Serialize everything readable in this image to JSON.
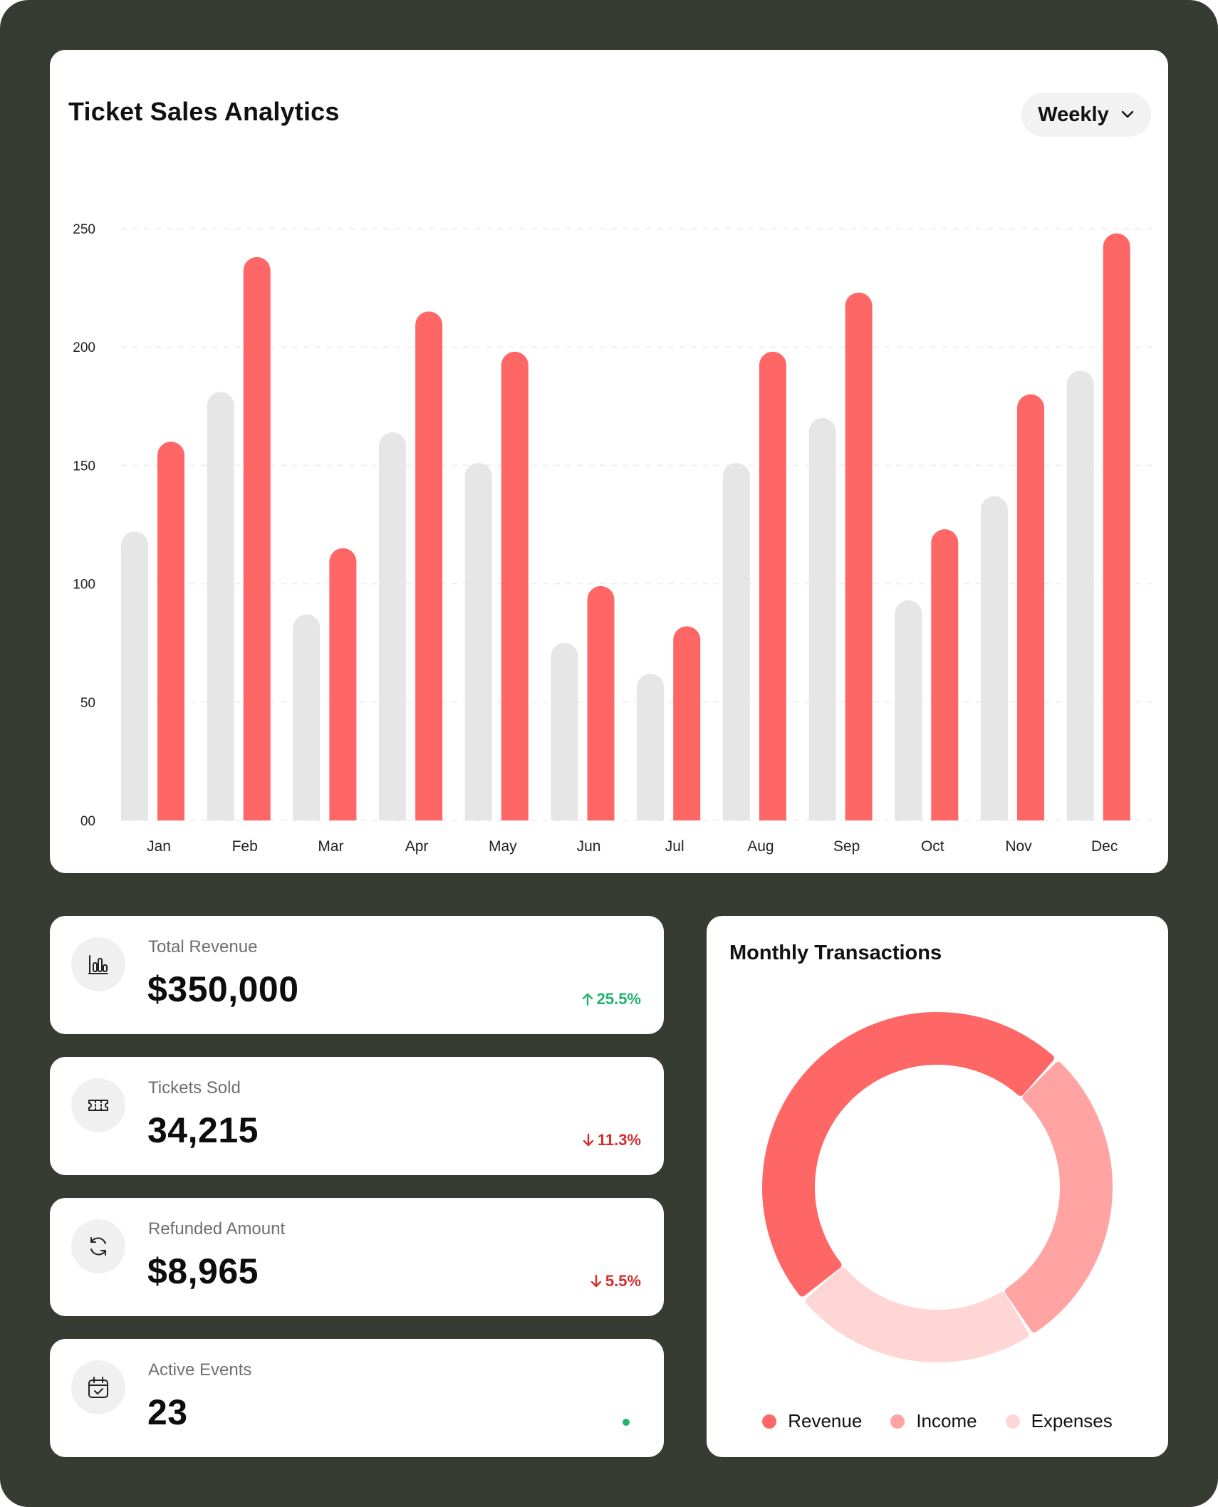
{
  "analytics": {
    "title": "Ticket Sales Analytics",
    "period_select": {
      "value": "Weekly"
    }
  },
  "chart_data": {
    "type": "bar",
    "categories": [
      "Jan",
      "Feb",
      "Mar",
      "Apr",
      "May",
      "Jun",
      "Jul",
      "Aug",
      "Sep",
      "Oct",
      "Nov",
      "Dec"
    ],
    "series": [
      {
        "color": "#E6E6E6",
        "values": [
          122,
          181,
          87,
          164,
          151,
          75,
          62,
          151,
          170,
          93,
          137,
          190
        ]
      },
      {
        "color": "#FF6666",
        "values": [
          160,
          238,
          115,
          215,
          198,
          99,
          82,
          198,
          223,
          123,
          180,
          248
        ]
      }
    ],
    "yticks": [
      "00",
      "50",
      "100",
      "150",
      "200",
      "250"
    ],
    "ylim": [
      0,
      250
    ],
    "grid": true
  },
  "stats": [
    {
      "label": "Total Revenue",
      "value": "$350,000",
      "change": "25.5%",
      "direction": "up",
      "icon": "bar-chart-icon"
    },
    {
      "label": "Tickets Sold",
      "value": "34,215",
      "change": "11.3%",
      "direction": "down",
      "icon": "ticket-icon"
    },
    {
      "label": "Refunded Amount",
      "value": "$8,965",
      "change": "5.5%",
      "direction": "down",
      "icon": "refresh-icon"
    },
    {
      "label": "Active Events",
      "value": "23",
      "change": "",
      "direction": "live",
      "icon": "calendar-check-icon"
    }
  ],
  "transactions": {
    "title": "Monthly Transactions",
    "chart_data": {
      "type": "pie",
      "labels": [
        "Revenue",
        "Income",
        "Expenses"
      ],
      "values": [
        48,
        29,
        23
      ],
      "colors": [
        "#FF6666",
        "#FFA3A3",
        "#FFD6D6"
      ]
    }
  }
}
